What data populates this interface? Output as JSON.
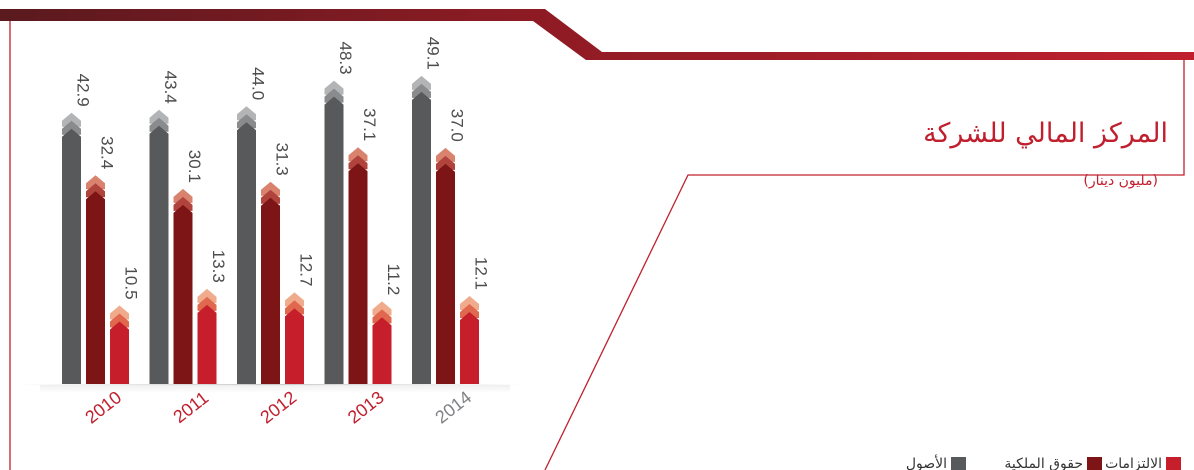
{
  "header": {
    "title": "المركز المالي للشركة",
    "subtitle": "(مليون دينار)"
  },
  "colors": {
    "accent": "#c0202e",
    "assets": "#58595b",
    "equity": "#7d1416",
    "liabilities": "#c71e2b",
    "frame_line": "#c0202e"
  },
  "legend": {
    "items": [
      {
        "label": "الالتزامات",
        "series": "liabilities"
      },
      {
        "label": "حقوق الملكية",
        "series": "equity"
      },
      {
        "label": "الأصول",
        "series": "assets"
      }
    ]
  },
  "chart_data": {
    "type": "bar",
    "title": "المركز المالي للشركة",
    "subtitle": "(مليون دينار)",
    "categories": [
      "2010",
      "2011",
      "2012",
      "2013",
      "2014"
    ],
    "series": [
      {
        "name": "الأصول",
        "key": "assets",
        "values": [
          42.9,
          43.4,
          44.0,
          48.3,
          49.1
        ]
      },
      {
        "name": "حقوق الملكية",
        "key": "equity",
        "values": [
          32.4,
          30.1,
          31.3,
          37.1,
          37.0
        ]
      },
      {
        "name": "الالتزامات",
        "key": "liabilities",
        "values": [
          10.5,
          13.3,
          12.7,
          11.2,
          12.1
        ]
      }
    ],
    "value_labels": [
      [
        "42.9",
        "32.4",
        "10.5"
      ],
      [
        "43.4",
        "30.1",
        "13.3"
      ],
      [
        "44.0",
        "31.3",
        "12.7"
      ],
      [
        "48.3",
        "37.1",
        "11.2"
      ],
      [
        "49.1",
        "37.0",
        "12.1"
      ]
    ],
    "year_colors": [
      "#c0202e",
      "#c0202e",
      "#c0202e",
      "#c0202e",
      "#808285"
    ],
    "xlabel": "",
    "ylabel": "",
    "ylim": [
      0,
      50
    ],
    "grid": false,
    "legend_position": "bottom-right"
  }
}
